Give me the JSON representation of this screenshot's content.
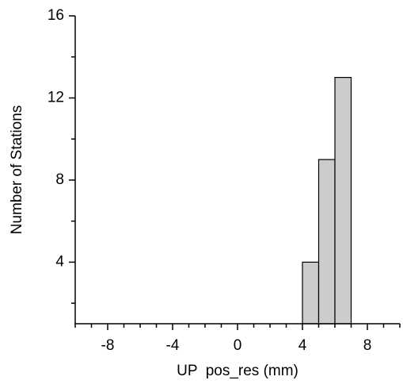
{
  "chart_data": {
    "type": "histogram",
    "xlabel": "UP  pos_res (mm)",
    "ylabel": "Number of Stations",
    "bins": [
      4,
      5,
      6,
      7
    ],
    "counts": [
      4,
      9,
      13
    ],
    "color": "#cccccc",
    "xlim": [
      -10,
      10
    ],
    "xticks": [
      -8,
      -4,
      0,
      4,
      8
    ],
    "xminorticks": [
      -10,
      -9,
      -7,
      -6,
      -5,
      -3,
      -2,
      -1,
      1,
      2,
      3,
      5,
      6,
      7,
      9,
      10
    ],
    "ylim": [
      1,
      16
    ],
    "yticks": [
      4,
      8,
      12,
      16
    ],
    "yminorticks": [
      2,
      6,
      10,
      14
    ],
    "grid": false
  }
}
